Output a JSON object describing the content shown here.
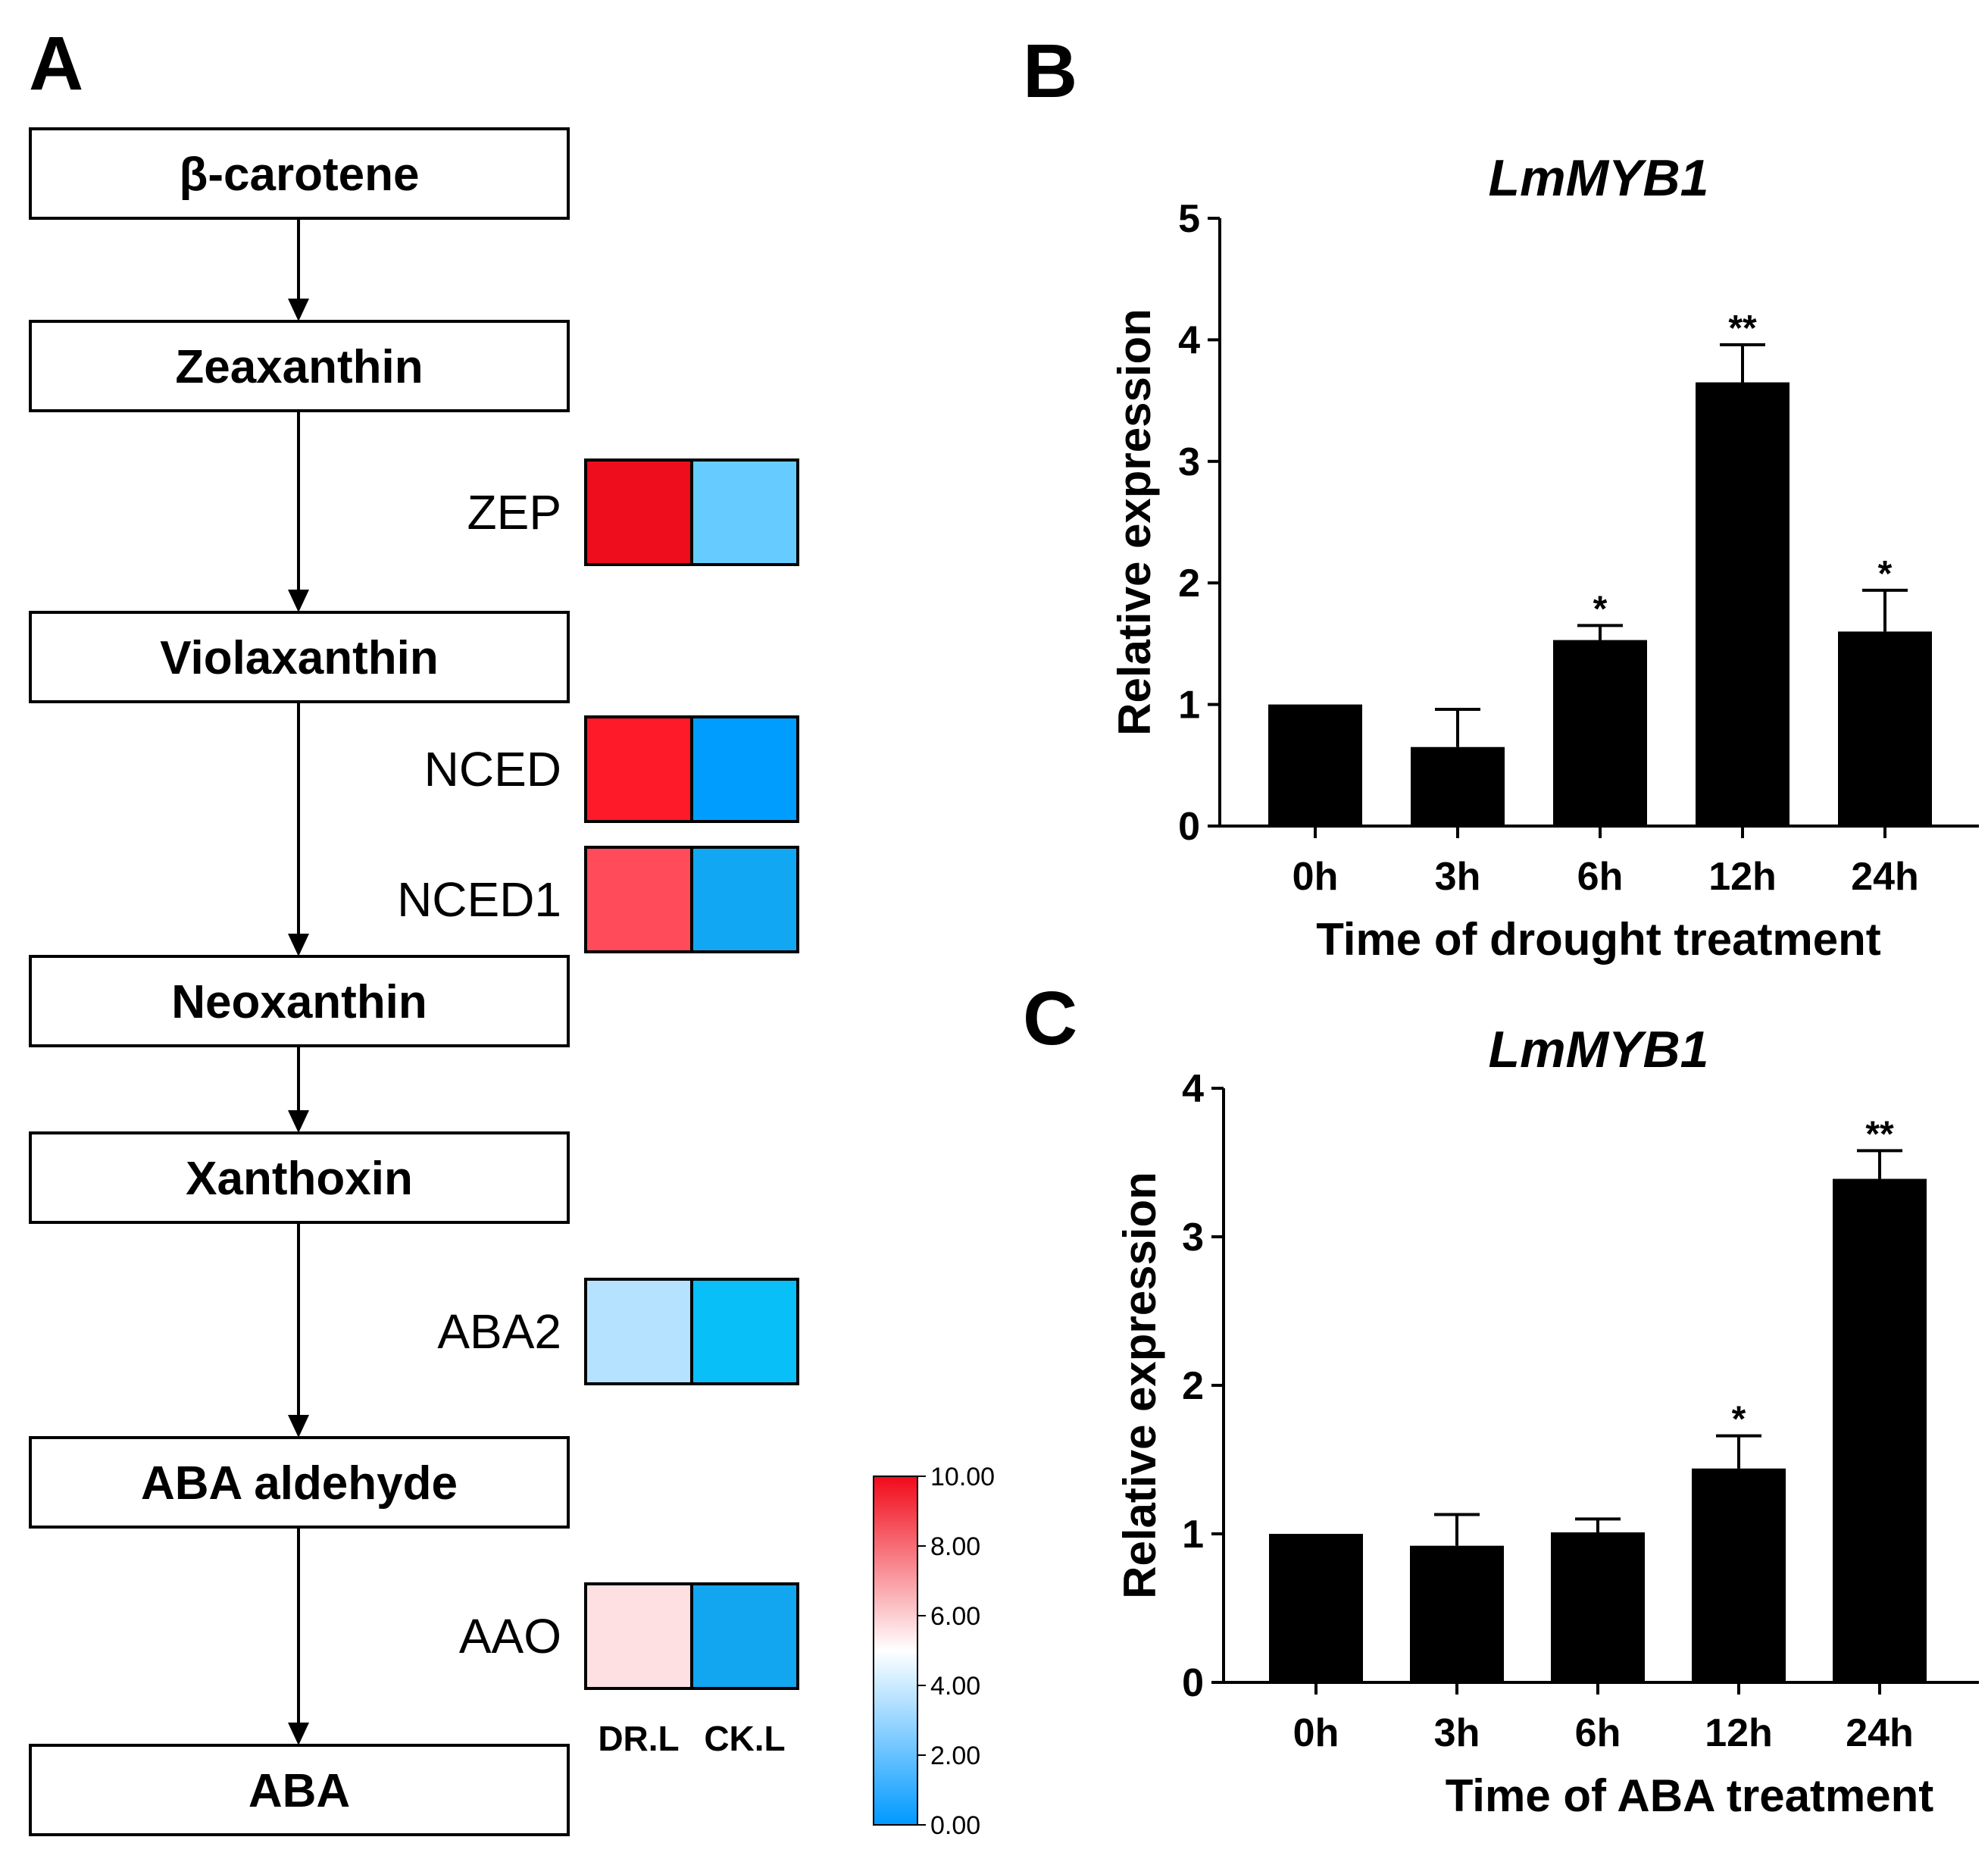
{
  "panels": {
    "a": {
      "letter": "A",
      "stages": [
        "β-carotene",
        "Zeaxanthin",
        "Violaxanthin",
        "Neoxanthin",
        "Xanthoxin",
        "ABA aldehyde",
        "ABA"
      ],
      "heatmap": {
        "columns": [
          "DR.L",
          "CK.L"
        ],
        "genes": [
          {
            "name": "ZEP",
            "values": [
              9.8,
              3.0
            ],
            "colors": [
              "#ee0d1c",
              "#66ccff"
            ]
          },
          {
            "name": "NCED",
            "values": [
              9.3,
              0.3
            ],
            "colors": [
              "#ff1a2a",
              "#009dff"
            ]
          },
          {
            "name": "NCED1",
            "values": [
              8.2,
              0.9
            ],
            "colors": [
              "#ff4b5a",
              "#12a7f2"
            ]
          },
          {
            "name": "ABA2",
            "values": [
              3.2,
              1.3
            ],
            "colors": [
              "#b5e3ff",
              "#08bff8"
            ]
          },
          {
            "name": "AAO",
            "values": [
              5.2,
              0.8
            ],
            "colors": [
              "#ffe0e2",
              "#12a5f0"
            ]
          }
        ],
        "colorbar": {
          "ticks": [
            "10.00",
            "8.00",
            "6.00",
            "4.00",
            "2.00",
            "0.00"
          ],
          "colors": [
            "#f10a1a",
            "#ffffff",
            "#0099ff"
          ]
        }
      }
    },
    "b": {
      "letter": "B"
    },
    "c": {
      "letter": "C"
    }
  },
  "chart_data": [
    {
      "type": "bar",
      "panel": "B",
      "title": "LmMYB1",
      "xlabel": "Time of  drought treatment",
      "ylabel": "Relative expression",
      "categories": [
        "0h",
        "3h",
        "6h",
        "12h",
        "24h"
      ],
      "values": [
        1.0,
        0.65,
        1.53,
        3.65,
        1.6
      ],
      "errors": [
        0.0,
        0.31,
        0.12,
        0.31,
        0.34
      ],
      "significance": [
        "",
        "",
        "*",
        "**",
        "*"
      ],
      "ylim": [
        0,
        5
      ],
      "yticks": [
        0,
        1,
        2,
        3,
        4,
        5
      ],
      "bar_color": "#000000"
    },
    {
      "type": "bar",
      "panel": "C",
      "title": "LmMYB1",
      "xlabel": "Time of  ABA treatment",
      "ylabel": "Relative expression",
      "categories": [
        "0h",
        "3h",
        "6h",
        "12h",
        "24h"
      ],
      "values": [
        1.0,
        0.92,
        1.01,
        1.44,
        3.39
      ],
      "errors": [
        0.0,
        0.21,
        0.09,
        0.22,
        0.19
      ],
      "significance": [
        "",
        "",
        "",
        "*",
        "**"
      ],
      "ylim": [
        0,
        4
      ],
      "yticks": [
        0,
        1,
        2,
        3,
        4
      ],
      "bar_color": "#000000"
    }
  ]
}
